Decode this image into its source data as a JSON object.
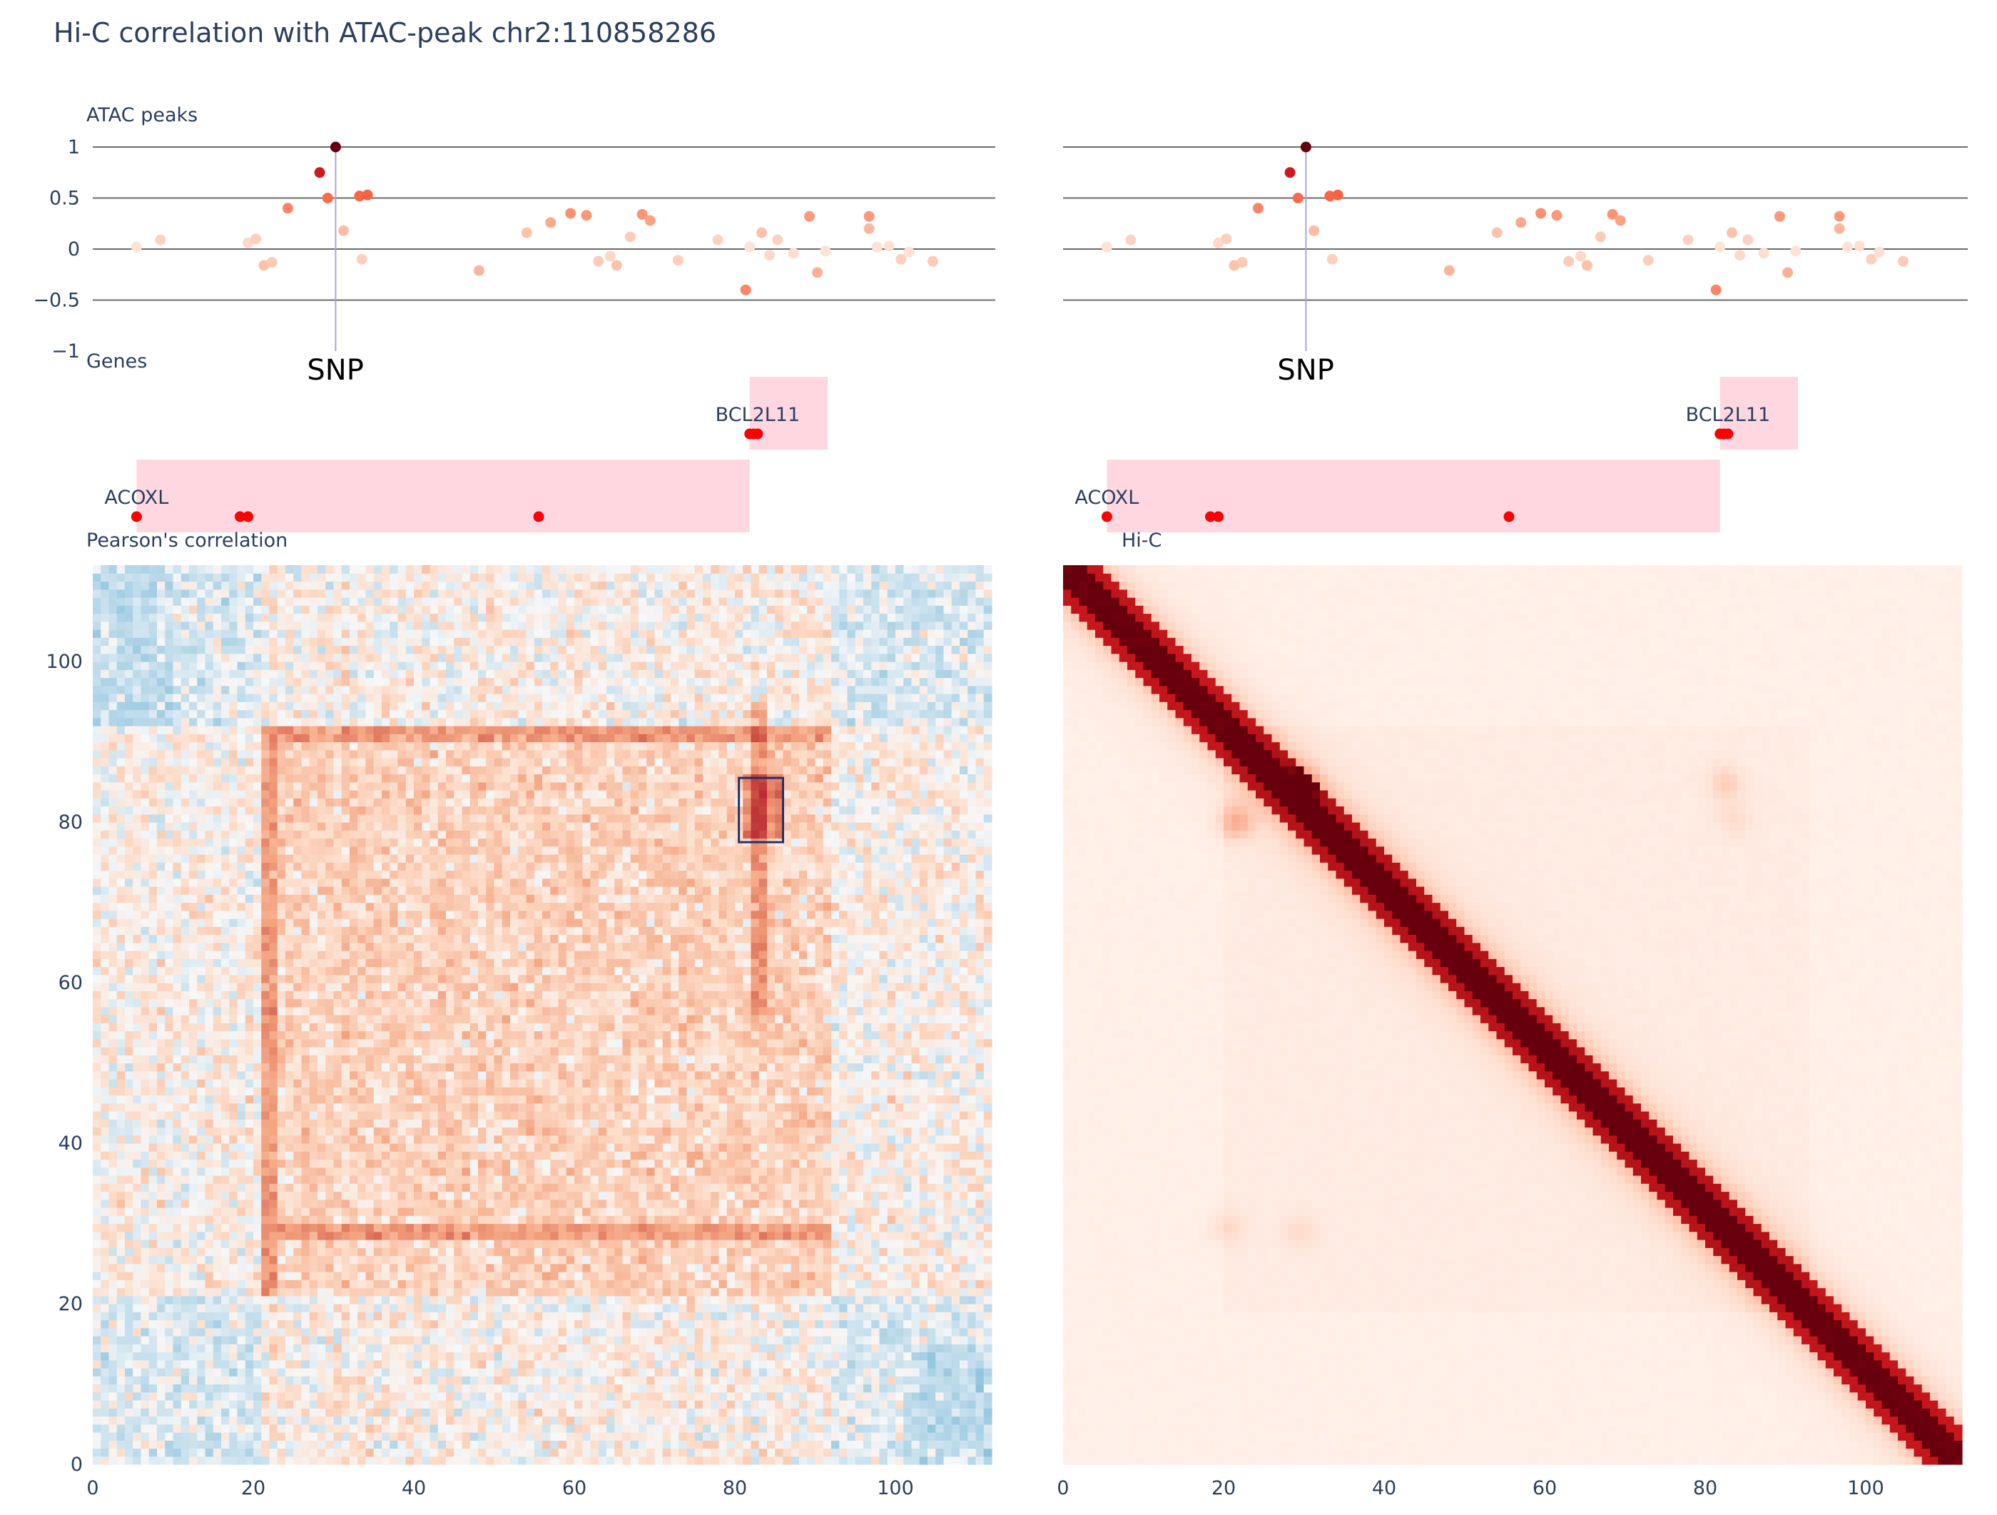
{
  "title": "Hi-C correlation with ATAC-peak chr2:110858286",
  "chart_data": [
    {
      "id": "atac",
      "type": "scatter",
      "panel_title": "ATAC peaks",
      "ylim": [
        -1,
        1
      ],
      "y_ticks": [
        1,
        0.5,
        0,
        -0.5,
        -1
      ],
      "y_tick_labels": [
        "1",
        "0.5",
        "0",
        "−0.5",
        "−1"
      ],
      "grid_y": [
        1,
        0.5,
        0,
        -0.5
      ],
      "xlim": [
        0,
        112
      ],
      "snp": {
        "x": 30.5,
        "label": "SNP"
      },
      "colorscale": "Reds",
      "points": [
        {
          "x": 5.5,
          "y": 0.02
        },
        {
          "x": 8.5,
          "y": 0.09
        },
        {
          "x": 19.5,
          "y": 0.06
        },
        {
          "x": 20.5,
          "y": 0.1
        },
        {
          "x": 21.5,
          "y": -0.16
        },
        {
          "x": 22.5,
          "y": -0.13
        },
        {
          "x": 24.5,
          "y": 0.4
        },
        {
          "x": 28.5,
          "y": 0.75
        },
        {
          "x": 29.5,
          "y": 0.5
        },
        {
          "x": 30.5,
          "y": 1.0
        },
        {
          "x": 31.5,
          "y": 0.18
        },
        {
          "x": 33.5,
          "y": 0.52
        },
        {
          "x": 34.5,
          "y": 0.53
        },
        {
          "x": 33.8,
          "y": -0.1
        },
        {
          "x": 48.5,
          "y": -0.21
        },
        {
          "x": 54.5,
          "y": 0.16
        },
        {
          "x": 57.5,
          "y": 0.26
        },
        {
          "x": 60.0,
          "y": 0.35
        },
        {
          "x": 62.0,
          "y": 0.33
        },
        {
          "x": 63.5,
          "y": -0.12
        },
        {
          "x": 65.0,
          "y": -0.07
        },
        {
          "x": 65.8,
          "y": -0.16
        },
        {
          "x": 67.5,
          "y": 0.12
        },
        {
          "x": 69.0,
          "y": 0.34
        },
        {
          "x": 70.0,
          "y": 0.28
        },
        {
          "x": 73.5,
          "y": -0.11
        },
        {
          "x": 78.5,
          "y": 0.09
        },
        {
          "x": 82.0,
          "y": -0.4
        },
        {
          "x": 82.5,
          "y": 0.02
        },
        {
          "x": 84.0,
          "y": 0.16
        },
        {
          "x": 85.0,
          "y": -0.06
        },
        {
          "x": 86.0,
          "y": 0.09
        },
        {
          "x": 88.0,
          "y": -0.04
        },
        {
          "x": 90.0,
          "y": 0.32
        },
        {
          "x": 91.0,
          "y": -0.23
        },
        {
          "x": 92.0,
          "y": -0.02
        },
        {
          "x": 97.5,
          "y": 0.32
        },
        {
          "x": 97.5,
          "y": 0.2
        },
        {
          "x": 98.5,
          "y": 0.02
        },
        {
          "x": 100.0,
          "y": 0.03
        },
        {
          "x": 101.5,
          "y": -0.1
        },
        {
          "x": 102.5,
          "y": -0.03
        },
        {
          "x": 105.5,
          "y": -0.12
        }
      ]
    },
    {
      "id": "genes",
      "type": "table",
      "panel_title": "Genes",
      "xlim": [
        0,
        112
      ],
      "genes": [
        {
          "name": "BCL2L11",
          "start": 82.5,
          "end": 92.3,
          "row": "top",
          "label_x": 83.5,
          "markers": [
            82.5,
            83.0,
            83.5
          ]
        },
        {
          "name": "ACOXL",
          "start": 5.5,
          "end": 82.5,
          "row": "bottom",
          "label_x": 5.5,
          "markers": [
            5.5,
            18.5,
            19.5,
            56.0
          ]
        }
      ]
    },
    {
      "id": "pearson",
      "type": "heatmap",
      "panel_title": "Pearson's correlation",
      "colorscale": "RdBu (reversed)",
      "n": 112,
      "xlim": [
        0,
        112
      ],
      "ylim": [
        0,
        112
      ],
      "x_ticks": [
        0,
        20,
        40,
        60,
        80,
        100
      ],
      "y_ticks": [
        0,
        20,
        40,
        60,
        80,
        100
      ],
      "highlight_box": {
        "x0": 80.5,
        "x1": 86.0,
        "y0": 77.5,
        "y1": 85.5
      }
    },
    {
      "id": "hic",
      "type": "heatmap",
      "panel_title": "Hi-C",
      "colorscale": "Reds",
      "n": 112,
      "xlim": [
        0,
        112
      ],
      "ylim": [
        0,
        112
      ],
      "x_ticks": [
        0,
        20,
        40,
        60,
        80,
        100
      ]
    }
  ]
}
